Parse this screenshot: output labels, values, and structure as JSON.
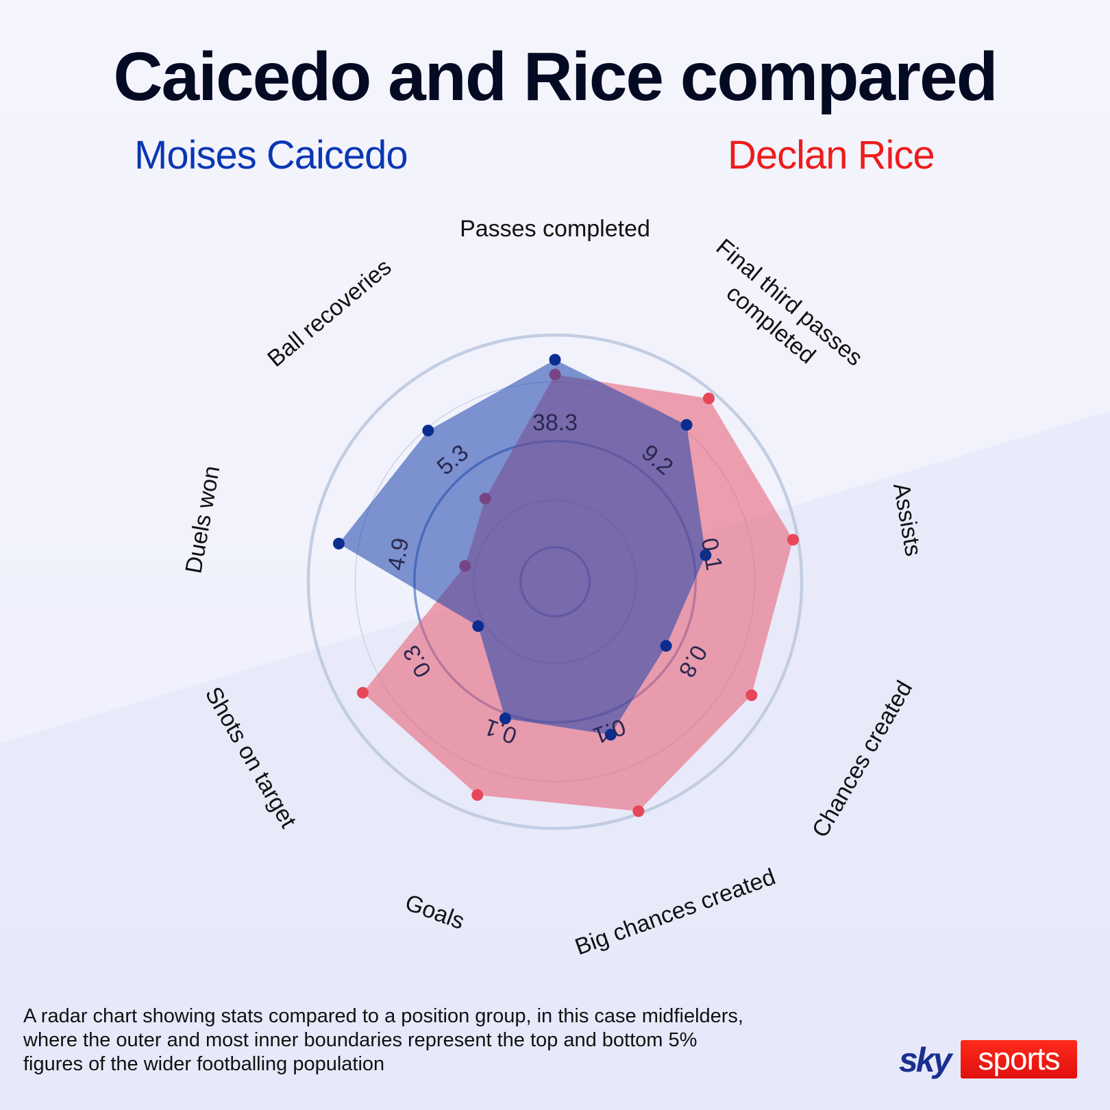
{
  "header": {
    "title": "Caicedo and Rice compared",
    "player_blue": "Moises Caicedo",
    "player_red": "Declan Rice"
  },
  "caption": "A radar chart showing stats compared to a position group, in this case midfielders, where the outer and most inner boundaries represent the top and bottom 5% figures of the wider footballing population",
  "logo": {
    "sky": "sky",
    "sports": "sports"
  },
  "colors": {
    "caicedo": "#0a2d8f",
    "rice": "#e8475a",
    "caicedo_fill": "rgba(28,66,170,0.55)",
    "rice_fill": "rgba(232,90,110,0.55)",
    "grid": "#c2cde2",
    "grid_inner": "#5a80c4"
  },
  "chart_data": {
    "type": "radar",
    "title": "Caicedo and Rice compared",
    "axes": [
      "Passes completed",
      "Final third passes completed",
      "Assists",
      "Chances created",
      "Big chances created",
      "Goals",
      "Shots on target",
      "Duels won",
      "Ball recoveries"
    ],
    "axis_tick_values": [
      "38.3",
      "9.2",
      "0.1",
      "0.8",
      "0.1",
      "0.1",
      "0.3",
      "4.9",
      "5.3"
    ],
    "scale": "normalized 0-1 (outer ring = top 5%, inner ring = bottom 5%)",
    "series": [
      {
        "name": "Declan Rice",
        "color": "#e8475a",
        "values": [
          0.84,
          0.97,
          0.98,
          0.92,
          0.99,
          0.92,
          0.9,
          0.37,
          0.44
        ]
      },
      {
        "name": "Moises Caicedo",
        "color": "#0a2d8f",
        "values": [
          0.9,
          0.83,
          0.62,
          0.52,
          0.66,
          0.59,
          0.36,
          0.89,
          0.8
        ]
      }
    ],
    "rings": [
      0.14,
      0.33,
      0.57,
      0.81,
      1.0
    ],
    "legend_position": "top"
  }
}
